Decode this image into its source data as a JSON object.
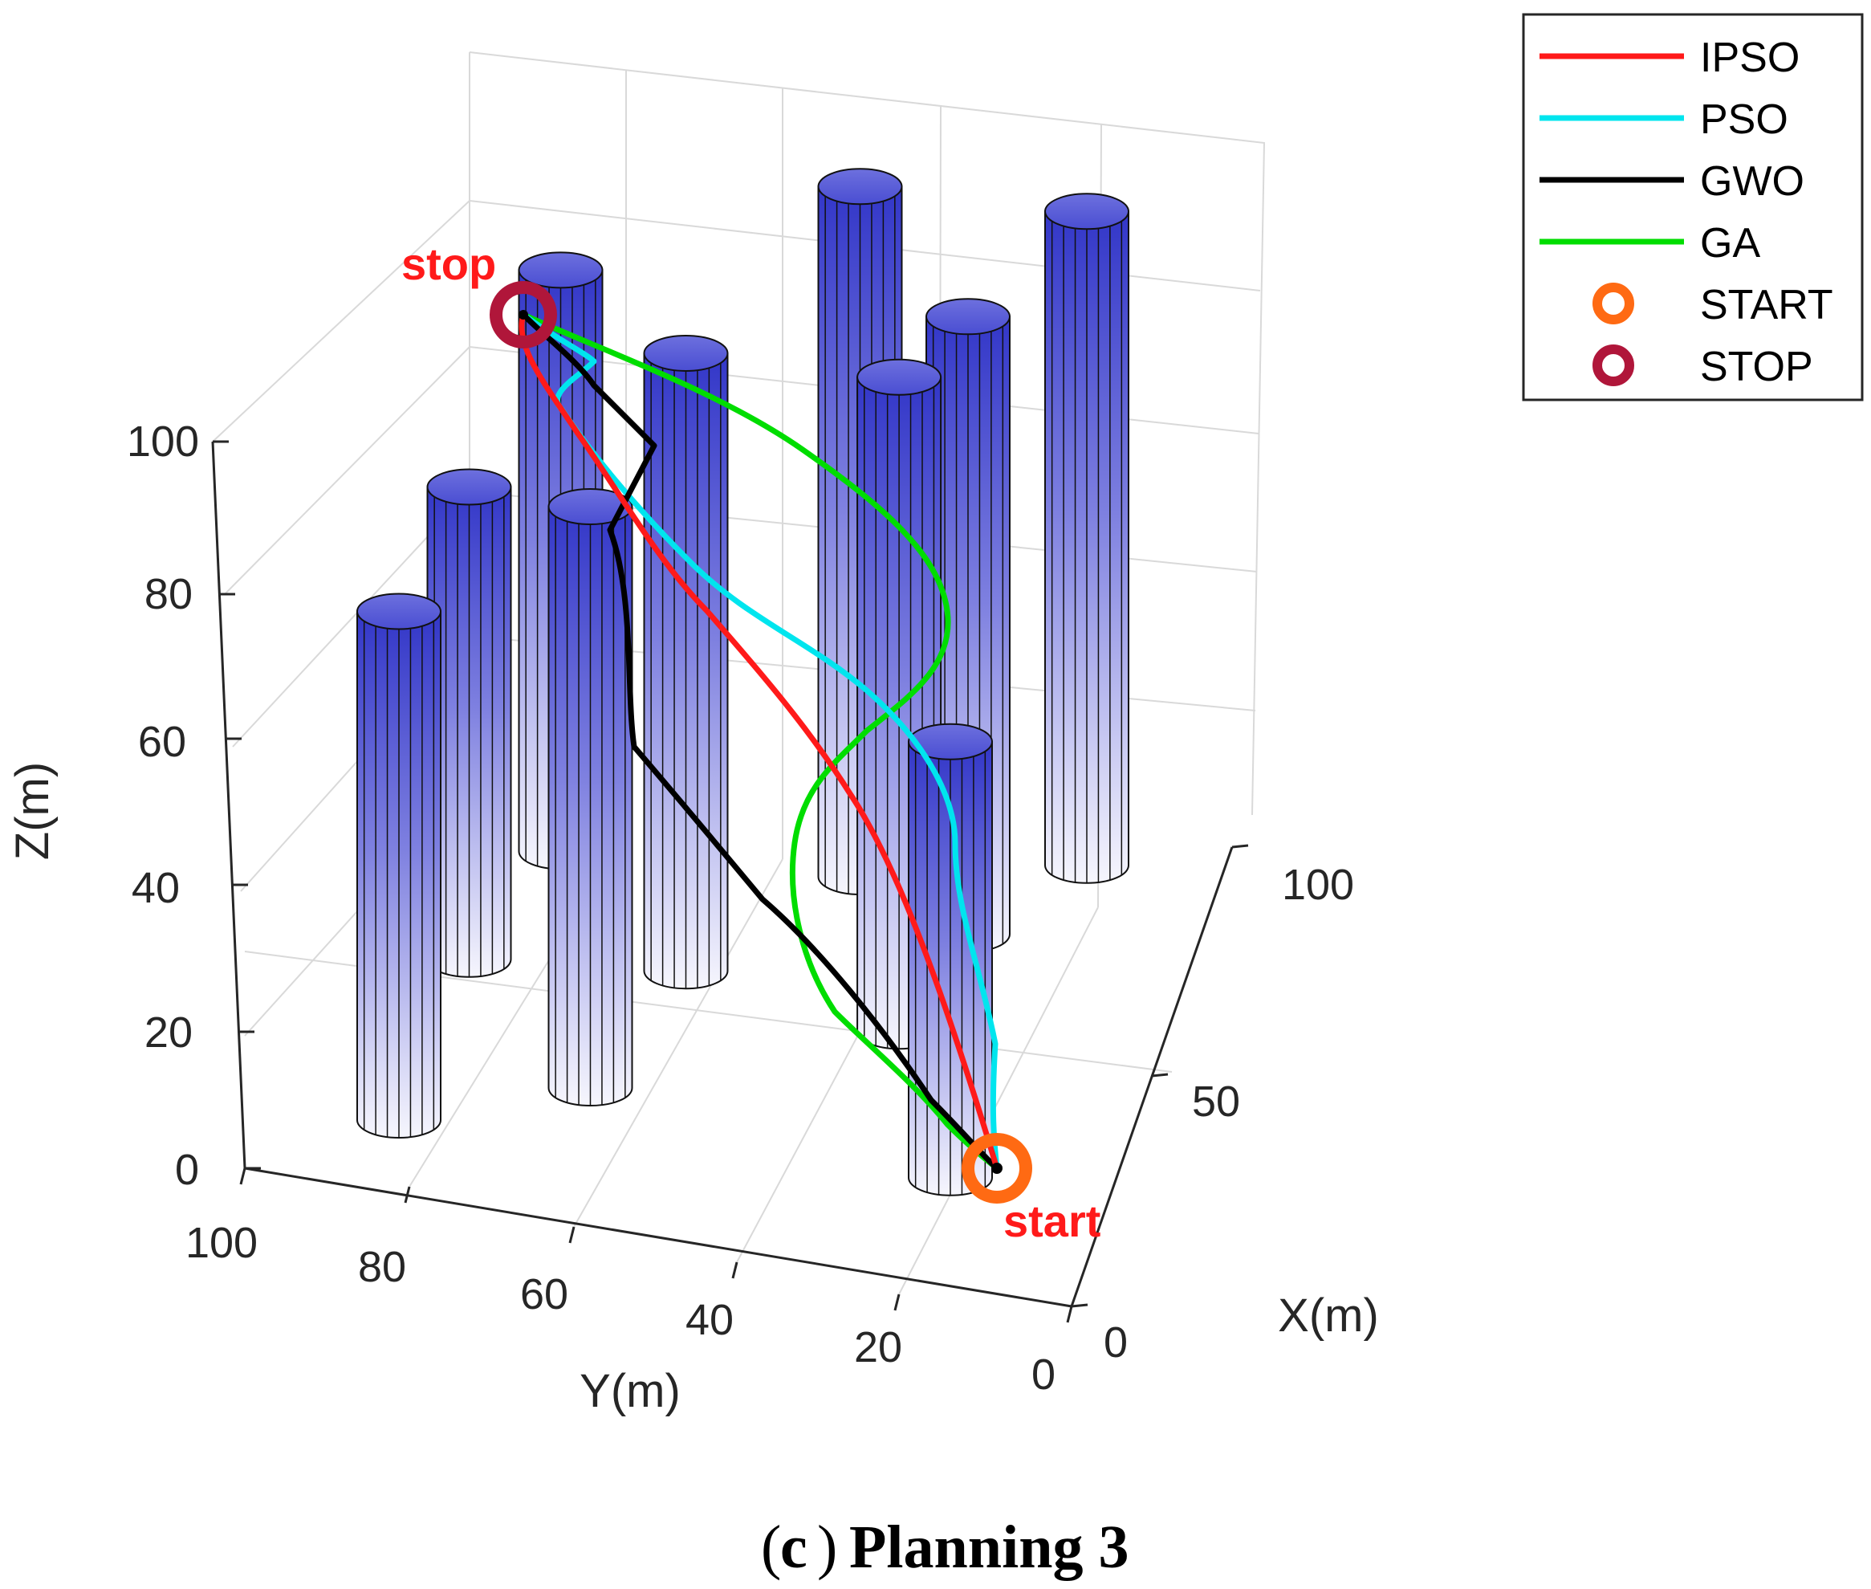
{
  "chart_data": {
    "type": "3d-line",
    "title": "",
    "caption": {
      "letter": "c",
      "text": "Planning 3"
    },
    "xlabel": "X(m)",
    "ylabel": "Y(m)",
    "zlabel": "Z(m)",
    "xlim": [
      0,
      100
    ],
    "ylim": [
      0,
      100
    ],
    "zlim": [
      0,
      100
    ],
    "x_ticks": [
      "0",
      "50",
      "100"
    ],
    "y_ticks": [
      "0",
      "20",
      "40",
      "60",
      "80",
      "100"
    ],
    "z_ticks": [
      "0",
      "20",
      "40",
      "60",
      "80",
      "100"
    ],
    "grid": true,
    "legend_position": "top-right",
    "obstacles": [
      {
        "x": 15,
        "y": 85,
        "radius": 6,
        "height": 70
      },
      {
        "x": 28,
        "y": 65,
        "radius": 6,
        "height": 80
      },
      {
        "x": 22,
        "y": 20,
        "radius": 6,
        "height": 60
      },
      {
        "x": 50,
        "y": 85,
        "radius": 6,
        "height": 65
      },
      {
        "x": 55,
        "y": 60,
        "radius": 6,
        "height": 85
      },
      {
        "x": 50,
        "y": 33,
        "radius": 6,
        "height": 90
      },
      {
        "x": 75,
        "y": 80,
        "radius": 6,
        "height": 80
      },
      {
        "x": 80,
        "y": 45,
        "radius": 6,
        "height": 95
      },
      {
        "x": 72,
        "y": 30,
        "radius": 6,
        "height": 85
      },
      {
        "x": 90,
        "y": 20,
        "radius": 6,
        "height": 90
      }
    ],
    "start": {
      "x": 10,
      "y": 10,
      "z": 0,
      "label": "start"
    },
    "stop": {
      "x": 90,
      "y": 90,
      "z": 100,
      "label": "stop"
    },
    "series": [
      {
        "name": "IPSO",
        "color": "#ff1a1a"
      },
      {
        "name": "PSO",
        "color": "#00e5ee"
      },
      {
        "name": "GWO",
        "color": "#000000"
      },
      {
        "name": "GA",
        "color": "#00dd00"
      },
      {
        "name": "START",
        "color": "#ff6a13",
        "marker": "o"
      },
      {
        "name": "STOP",
        "color": "#b0163a",
        "marker": "o"
      }
    ]
  }
}
